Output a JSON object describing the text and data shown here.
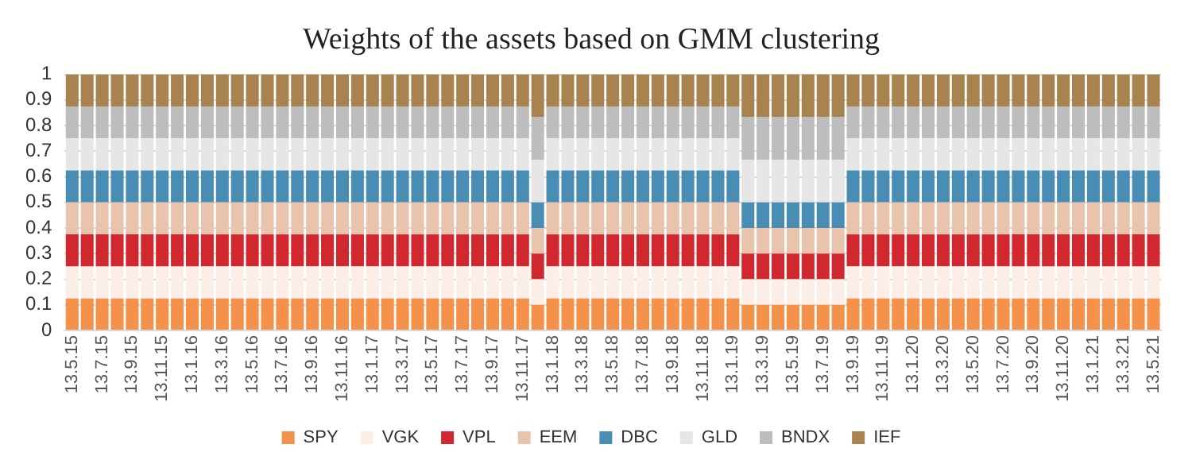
{
  "chart_data": {
    "type": "bar",
    "title": "Weights of the assets based on GMM clustering",
    "stacked": true,
    "grid": "y",
    "legend": "bottom",
    "ylim": [
      0,
      1
    ],
    "yticks": [
      0,
      0.1,
      0.2,
      0.3,
      0.4,
      0.5,
      0.6,
      0.7,
      0.8,
      0.9,
      1
    ],
    "categories": [
      "13.5.15",
      null,
      "13.7.15",
      null,
      "13.9.15",
      null,
      "13.11.15",
      null,
      "13.1.16",
      null,
      "13.3.16",
      null,
      "13.5.16",
      null,
      "13.7.16",
      null,
      "13.9.16",
      null,
      "13.11.16",
      null,
      "13.1.17",
      null,
      "13.3.17",
      null,
      "13.5.17",
      null,
      "13.7.17",
      null,
      "13.9.17",
      null,
      "13.11.17",
      null,
      "13.1.18",
      null,
      "13.3.18",
      null,
      "13.5.18",
      null,
      "13.7.18",
      null,
      "13.9.18",
      null,
      "13.11.18",
      null,
      "13.1.19",
      null,
      "13.3.19",
      null,
      "13.5.19",
      null,
      "13.7.19",
      null,
      "13.9.19",
      null,
      "13.11.19",
      null,
      "13.1.20",
      null,
      "13.3.20",
      null,
      "13.5.20",
      null,
      "13.7.20",
      null,
      "13.9.20",
      null,
      "13.11.20",
      null,
      "13.1.21",
      null,
      "13.3.21",
      null,
      "13.5.21"
    ],
    "series": [
      {
        "name": "SPY",
        "color": "#f4914a",
        "values": [
          0.125,
          0.125,
          0.125,
          0.125,
          0.125,
          0.125,
          0.125,
          0.125,
          0.125,
          0.125,
          0.125,
          0.125,
          0.125,
          0.125,
          0.125,
          0.125,
          0.125,
          0.125,
          0.125,
          0.125,
          0.125,
          0.125,
          0.125,
          0.125,
          0.125,
          0.125,
          0.125,
          0.125,
          0.125,
          0.125,
          0.125,
          0.1,
          0.125,
          0.125,
          0.125,
          0.125,
          0.125,
          0.125,
          0.125,
          0.125,
          0.125,
          0.125,
          0.125,
          0.125,
          0.125,
          0.1,
          0.1,
          0.1,
          0.1,
          0.1,
          0.1,
          0.1,
          0.125,
          0.125,
          0.125,
          0.125,
          0.125,
          0.125,
          0.125,
          0.125,
          0.125,
          0.125,
          0.125,
          0.125,
          0.125,
          0.125,
          0.125,
          0.125,
          0.125,
          0.125,
          0.125,
          0.125,
          0.125
        ]
      },
      {
        "name": "VGK",
        "color": "#fbeee6",
        "values": [
          0.125,
          0.125,
          0.125,
          0.125,
          0.125,
          0.125,
          0.125,
          0.125,
          0.125,
          0.125,
          0.125,
          0.125,
          0.125,
          0.125,
          0.125,
          0.125,
          0.125,
          0.125,
          0.125,
          0.125,
          0.125,
          0.125,
          0.125,
          0.125,
          0.125,
          0.125,
          0.125,
          0.125,
          0.125,
          0.125,
          0.125,
          0.1,
          0.125,
          0.125,
          0.125,
          0.125,
          0.125,
          0.125,
          0.125,
          0.125,
          0.125,
          0.125,
          0.125,
          0.125,
          0.125,
          0.1,
          0.1,
          0.1,
          0.1,
          0.1,
          0.1,
          0.1,
          0.125,
          0.125,
          0.125,
          0.125,
          0.125,
          0.125,
          0.125,
          0.125,
          0.125,
          0.125,
          0.125,
          0.125,
          0.125,
          0.125,
          0.125,
          0.125,
          0.125,
          0.125,
          0.125,
          0.125,
          0.125
        ]
      },
      {
        "name": "VPL",
        "color": "#d0282e",
        "values": [
          0.125,
          0.125,
          0.125,
          0.125,
          0.125,
          0.125,
          0.125,
          0.125,
          0.125,
          0.125,
          0.125,
          0.125,
          0.125,
          0.125,
          0.125,
          0.125,
          0.125,
          0.125,
          0.125,
          0.125,
          0.125,
          0.125,
          0.125,
          0.125,
          0.125,
          0.125,
          0.125,
          0.125,
          0.125,
          0.125,
          0.125,
          0.1,
          0.125,
          0.125,
          0.125,
          0.125,
          0.125,
          0.125,
          0.125,
          0.125,
          0.125,
          0.125,
          0.125,
          0.125,
          0.125,
          0.1,
          0.1,
          0.1,
          0.1,
          0.1,
          0.1,
          0.1,
          0.125,
          0.125,
          0.125,
          0.125,
          0.125,
          0.125,
          0.125,
          0.125,
          0.125,
          0.125,
          0.125,
          0.125,
          0.125,
          0.125,
          0.125,
          0.125,
          0.125,
          0.125,
          0.125,
          0.125,
          0.125
        ]
      },
      {
        "name": "EEM",
        "color": "#e8c4ad",
        "values": [
          0.125,
          0.125,
          0.125,
          0.125,
          0.125,
          0.125,
          0.125,
          0.125,
          0.125,
          0.125,
          0.125,
          0.125,
          0.125,
          0.125,
          0.125,
          0.125,
          0.125,
          0.125,
          0.125,
          0.125,
          0.125,
          0.125,
          0.125,
          0.125,
          0.125,
          0.125,
          0.125,
          0.125,
          0.125,
          0.125,
          0.125,
          0.1,
          0.125,
          0.125,
          0.125,
          0.125,
          0.125,
          0.125,
          0.125,
          0.125,
          0.125,
          0.125,
          0.125,
          0.125,
          0.125,
          0.1,
          0.1,
          0.1,
          0.1,
          0.1,
          0.1,
          0.1,
          0.125,
          0.125,
          0.125,
          0.125,
          0.125,
          0.125,
          0.125,
          0.125,
          0.125,
          0.125,
          0.125,
          0.125,
          0.125,
          0.125,
          0.125,
          0.125,
          0.125,
          0.125,
          0.125,
          0.125,
          0.125
        ]
      },
      {
        "name": "DBC",
        "color": "#4a8db4",
        "values": [
          0.125,
          0.125,
          0.125,
          0.125,
          0.125,
          0.125,
          0.125,
          0.125,
          0.125,
          0.125,
          0.125,
          0.125,
          0.125,
          0.125,
          0.125,
          0.125,
          0.125,
          0.125,
          0.125,
          0.125,
          0.125,
          0.125,
          0.125,
          0.125,
          0.125,
          0.125,
          0.125,
          0.125,
          0.125,
          0.125,
          0.125,
          0.1,
          0.125,
          0.125,
          0.125,
          0.125,
          0.125,
          0.125,
          0.125,
          0.125,
          0.125,
          0.125,
          0.125,
          0.125,
          0.125,
          0.1,
          0.1,
          0.1,
          0.1,
          0.1,
          0.1,
          0.1,
          0.125,
          0.125,
          0.125,
          0.125,
          0.125,
          0.125,
          0.125,
          0.125,
          0.125,
          0.125,
          0.125,
          0.125,
          0.125,
          0.125,
          0.125,
          0.125,
          0.125,
          0.125,
          0.125,
          0.125,
          0.125
        ]
      },
      {
        "name": "GLD",
        "color": "#e6e6e6",
        "values": [
          0.125,
          0.125,
          0.125,
          0.125,
          0.125,
          0.125,
          0.125,
          0.125,
          0.125,
          0.125,
          0.125,
          0.125,
          0.125,
          0.125,
          0.125,
          0.125,
          0.125,
          0.125,
          0.125,
          0.125,
          0.125,
          0.125,
          0.125,
          0.125,
          0.125,
          0.125,
          0.125,
          0.125,
          0.125,
          0.125,
          0.125,
          0.167,
          0.125,
          0.125,
          0.125,
          0.125,
          0.125,
          0.125,
          0.125,
          0.125,
          0.125,
          0.125,
          0.125,
          0.125,
          0.125,
          0.167,
          0.167,
          0.167,
          0.167,
          0.167,
          0.167,
          0.167,
          0.125,
          0.125,
          0.125,
          0.125,
          0.125,
          0.125,
          0.125,
          0.125,
          0.125,
          0.125,
          0.125,
          0.125,
          0.125,
          0.125,
          0.125,
          0.125,
          0.125,
          0.125,
          0.125,
          0.125,
          0.125
        ]
      },
      {
        "name": "BNDX",
        "color": "#bdbdbd",
        "values": [
          0.125,
          0.125,
          0.125,
          0.125,
          0.125,
          0.125,
          0.125,
          0.125,
          0.125,
          0.125,
          0.125,
          0.125,
          0.125,
          0.125,
          0.125,
          0.125,
          0.125,
          0.125,
          0.125,
          0.125,
          0.125,
          0.125,
          0.125,
          0.125,
          0.125,
          0.125,
          0.125,
          0.125,
          0.125,
          0.125,
          0.125,
          0.167,
          0.125,
          0.125,
          0.125,
          0.125,
          0.125,
          0.125,
          0.125,
          0.125,
          0.125,
          0.125,
          0.125,
          0.125,
          0.125,
          0.167,
          0.167,
          0.167,
          0.167,
          0.167,
          0.167,
          0.167,
          0.125,
          0.125,
          0.125,
          0.125,
          0.125,
          0.125,
          0.125,
          0.125,
          0.125,
          0.125,
          0.125,
          0.125,
          0.125,
          0.125,
          0.125,
          0.125,
          0.125,
          0.125,
          0.125,
          0.125,
          0.125
        ]
      },
      {
        "name": "IEF",
        "color": "#a8834f",
        "values": [
          0.125,
          0.125,
          0.125,
          0.125,
          0.125,
          0.125,
          0.125,
          0.125,
          0.125,
          0.125,
          0.125,
          0.125,
          0.125,
          0.125,
          0.125,
          0.125,
          0.125,
          0.125,
          0.125,
          0.125,
          0.125,
          0.125,
          0.125,
          0.125,
          0.125,
          0.125,
          0.125,
          0.125,
          0.125,
          0.125,
          0.125,
          0.167,
          0.125,
          0.125,
          0.125,
          0.125,
          0.125,
          0.125,
          0.125,
          0.125,
          0.125,
          0.125,
          0.125,
          0.125,
          0.125,
          0.167,
          0.167,
          0.167,
          0.167,
          0.167,
          0.167,
          0.167,
          0.125,
          0.125,
          0.125,
          0.125,
          0.125,
          0.125,
          0.125,
          0.125,
          0.125,
          0.125,
          0.125,
          0.125,
          0.125,
          0.125,
          0.125,
          0.125,
          0.125,
          0.125,
          0.125,
          0.125,
          0.125
        ]
      }
    ]
  }
}
